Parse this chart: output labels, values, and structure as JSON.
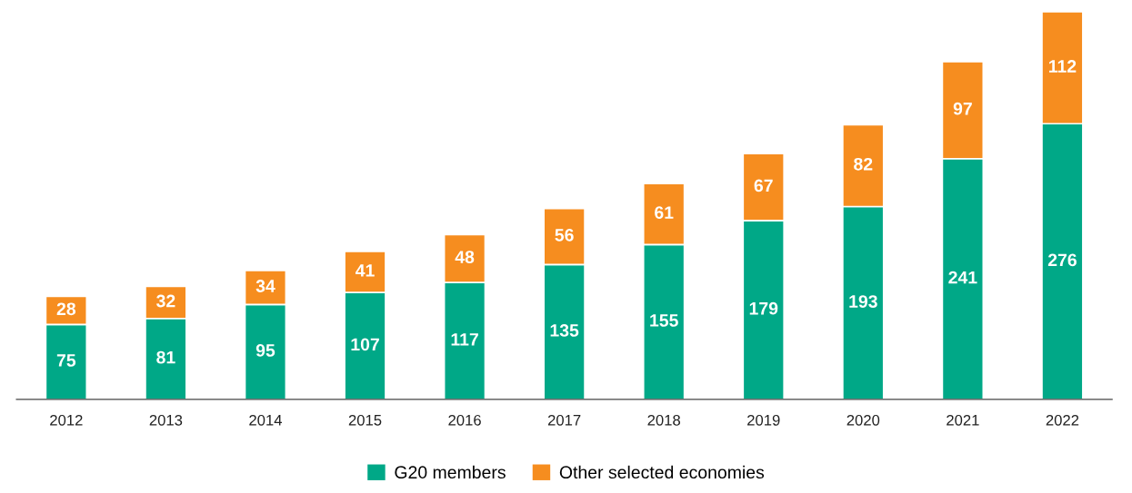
{
  "chart_data": {
    "type": "bar",
    "stacked": true,
    "data_labels": true,
    "legend": "bottom",
    "grid": false,
    "categories": [
      "2012",
      "2013",
      "2014",
      "2015",
      "2016",
      "2017",
      "2018",
      "2019",
      "2020",
      "2021",
      "2022"
    ],
    "series": [
      {
        "name": "G20 members",
        "color": "#00a887",
        "values": [
          75,
          81,
          95,
          107,
          117,
          135,
          155,
          179,
          193,
          241,
          276
        ]
      },
      {
        "name": "Other selected economies",
        "color": "#f68d1f",
        "values": [
          28,
          32,
          34,
          41,
          48,
          56,
          61,
          67,
          82,
          97,
          112
        ]
      }
    ]
  }
}
